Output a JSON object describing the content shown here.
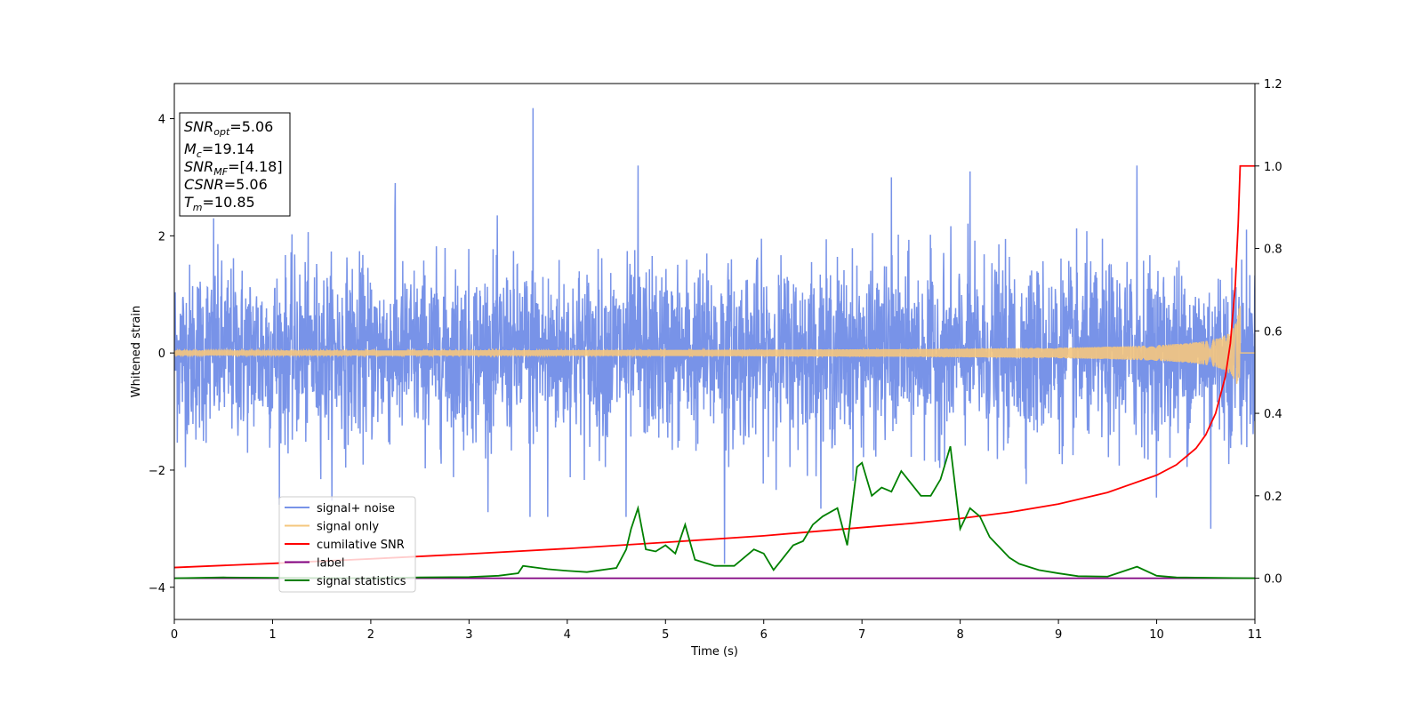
{
  "chart_data": {
    "type": "line",
    "xlabel": "Time (s)",
    "ylabel": "Whitened strain",
    "xlim": [
      0,
      11
    ],
    "ylim": [
      -4.55,
      4.6
    ],
    "y2lim": [
      -0.1,
      1.2
    ],
    "xticks": [
      "0",
      "1",
      "2",
      "3",
      "4",
      "5",
      "6",
      "7",
      "8",
      "9",
      "10",
      "11"
    ],
    "yticks": [
      "4",
      "2",
      "0",
      "−2",
      "−4"
    ],
    "yticks_values": [
      4,
      2,
      0,
      -2,
      -4
    ],
    "y2ticks": [
      "1.2",
      "1.0",
      "0.8",
      "0.6",
      "0.4",
      "0.2",
      "0.0"
    ],
    "y2ticks_values": [
      1.2,
      1.0,
      0.8,
      0.6,
      0.4,
      0.2,
      0.0
    ],
    "legend_position": "lower-left",
    "info_box": {
      "lines": [
        {
          "main": "SNR",
          "sub": "opt",
          "rest": "=5.06"
        },
        {
          "main": "M",
          "sub": "c",
          "rest": "=19.14"
        },
        {
          "main": "SNR",
          "sub": "MF",
          "rest": "=[4.18]"
        },
        {
          "main": "CSNR",
          "sub": "",
          "rest": "=5.06"
        },
        {
          "main": "T",
          "sub": "m",
          "rest": "=10.85"
        }
      ]
    },
    "series": [
      {
        "name": "signal+ noise",
        "color": "#7893e8",
        "axis": "left",
        "kind": "noise",
        "typical_amplitude": 1.2,
        "spikes": [
          [
            3.65,
            4.18
          ],
          [
            0.4,
            2.3
          ],
          [
            2.25,
            2.9
          ],
          [
            4.72,
            3.2
          ],
          [
            7.3,
            3.0
          ],
          [
            8.1,
            3.1
          ],
          [
            9.8,
            3.2
          ],
          [
            5.6,
            -3.6
          ],
          [
            10.55,
            -3.0
          ],
          [
            3.62,
            -2.8
          ],
          [
            3.8,
            -2.8
          ],
          [
            4.6,
            -2.8
          ]
        ]
      },
      {
        "name": "signal only",
        "color": "#f5c77e",
        "axis": "left",
        "kind": "chirp",
        "peak_time": 10.85,
        "peak_amplitude": 0.85
      },
      {
        "name": "cumilative SNR",
        "color": "#ff0000",
        "axis": "right",
        "x": [
          0,
          1,
          2,
          3,
          4,
          5,
          6,
          7,
          7.5,
          8,
          8.5,
          9,
          9.5,
          10,
          10.2,
          10.4,
          10.5,
          10.6,
          10.7,
          10.75,
          10.8,
          10.83,
          10.85,
          11
        ],
        "y": [
          0.026,
          0.036,
          0.047,
          0.059,
          0.072,
          0.087,
          0.103,
          0.123,
          0.133,
          0.145,
          0.16,
          0.18,
          0.208,
          0.25,
          0.275,
          0.315,
          0.348,
          0.4,
          0.49,
          0.57,
          0.71,
          0.86,
          1.0,
          1.0
        ]
      },
      {
        "name": "label",
        "color": "#800080",
        "axis": "right",
        "x": [
          0,
          11
        ],
        "y": [
          0,
          0
        ]
      },
      {
        "name": "signal statistics",
        "color": "#008000",
        "axis": "right",
        "x": [
          0,
          0.5,
          1,
          2,
          2.5,
          3,
          3.3,
          3.5,
          3.55,
          3.8,
          4,
          4.2,
          4.5,
          4.6,
          4.65,
          4.72,
          4.8,
          4.9,
          5.0,
          5.1,
          5.2,
          5.3,
          5.5,
          5.7,
          5.8,
          5.9,
          6.0,
          6.1,
          6.2,
          6.3,
          6.4,
          6.5,
          6.6,
          6.75,
          6.85,
          6.95,
          7.0,
          7.1,
          7.2,
          7.3,
          7.4,
          7.5,
          7.6,
          7.7,
          7.8,
          7.9,
          8.0,
          8.1,
          8.2,
          8.3,
          8.5,
          8.6,
          8.8,
          9.0,
          9.2,
          9.5,
          9.8,
          10.0,
          10.2,
          11
        ],
        "y": [
          0.0,
          0.002,
          0.001,
          0.0,
          0.002,
          0.003,
          0.006,
          0.012,
          0.03,
          0.022,
          0.018,
          0.015,
          0.025,
          0.07,
          0.12,
          0.17,
          0.07,
          0.065,
          0.08,
          0.06,
          0.13,
          0.045,
          0.03,
          0.03,
          0.05,
          0.07,
          0.06,
          0.02,
          0.05,
          0.08,
          0.09,
          0.13,
          0.15,
          0.17,
          0.08,
          0.27,
          0.28,
          0.2,
          0.22,
          0.21,
          0.26,
          0.23,
          0.2,
          0.2,
          0.24,
          0.32,
          0.12,
          0.17,
          0.15,
          0.1,
          0.05,
          0.035,
          0.02,
          0.012,
          0.005,
          0.004,
          0.028,
          0.006,
          0.002,
          0.0
        ]
      }
    ]
  }
}
